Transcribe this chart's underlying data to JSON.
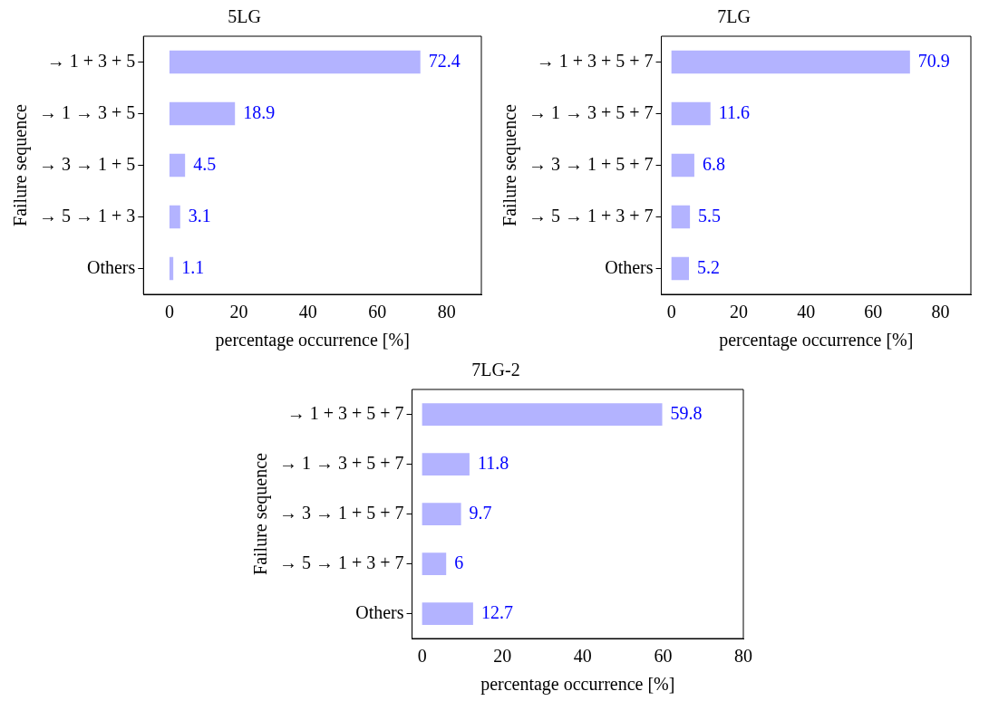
{
  "chart_data": [
    {
      "type": "bar",
      "orientation": "horizontal",
      "title": "5LG",
      "xlabel": "percentage occurrence [%]",
      "ylabel": "Failure sequence",
      "categories": [
        "→ 1 + 3 + 5",
        "→ 1 → 3 + 5",
        "→ 3 → 1 + 5",
        "→ 5 → 1 + 3",
        "Others"
      ],
      "values": [
        72.4,
        18.9,
        4.5,
        3.1,
        1.1
      ],
      "color": "#b3b3ff",
      "xlim": [
        -7.5,
        90
      ],
      "xticks": [
        0,
        20,
        40,
        60,
        80
      ],
      "data_labels": true,
      "grid": false,
      "legend": false
    },
    {
      "type": "bar",
      "orientation": "horizontal",
      "title": "7LG",
      "xlabel": "percentage occurrence [%]",
      "ylabel": "Failure sequence",
      "categories": [
        "→ 1 + 3 + 5 + 7",
        "→ 1 → 3 + 5 + 7",
        "→ 3 → 1 + 5 + 7",
        "→ 5 → 1 + 3 + 7",
        "Others"
      ],
      "values": [
        70.9,
        11.6,
        6.8,
        5.5,
        5.2
      ],
      "color": "#b3b3ff",
      "xlim": [
        -3,
        89
      ],
      "xticks": [
        0,
        20,
        40,
        60,
        80
      ],
      "data_labels": true,
      "grid": false,
      "legend": false
    },
    {
      "type": "bar",
      "orientation": "horizontal",
      "title": "7LG-2",
      "xlabel": "percentage occurrence [%]",
      "ylabel": "Failure sequence",
      "categories": [
        "→ 1 + 3 + 5 + 7",
        "→ 1 → 3 + 5 + 7",
        "→ 3 → 1 + 5 + 7",
        "→ 5 → 1 + 3 + 7",
        "Others"
      ],
      "values": [
        59.8,
        11.8,
        9.7,
        6,
        12.7
      ],
      "color": "#b3b3ff",
      "xlim": [
        -2.5,
        80
      ],
      "xticks": [
        0,
        20,
        40,
        60,
        80
      ],
      "data_labels": true,
      "grid": false,
      "legend": false
    }
  ]
}
